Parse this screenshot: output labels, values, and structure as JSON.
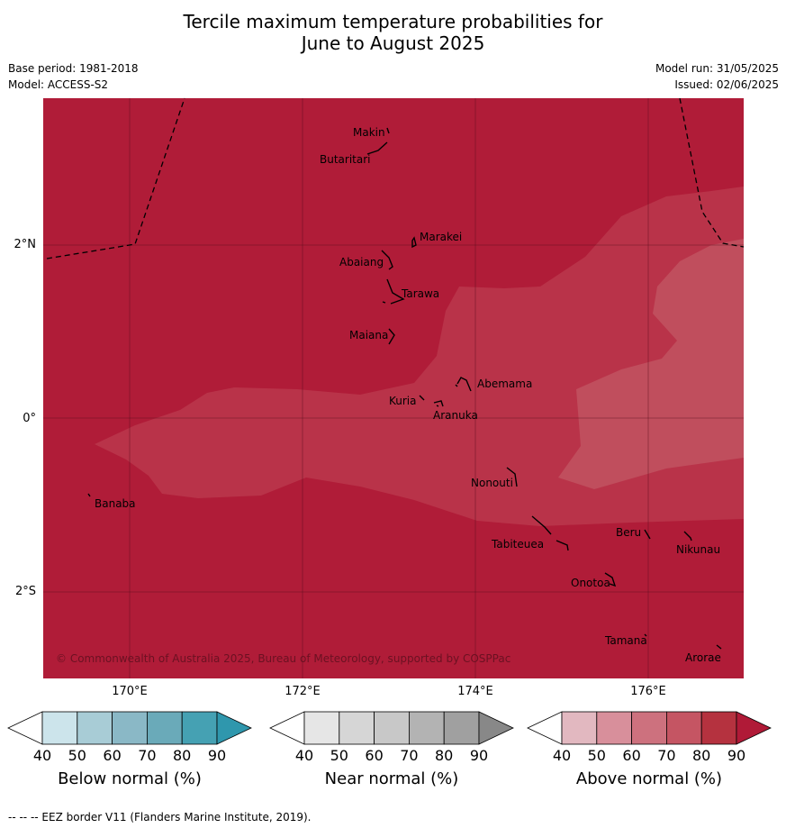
{
  "title_line1": "Tercile maximum temperature probabilities for",
  "title_line2": "June to August 2025",
  "base_period": "Base period: 1981-2018",
  "model": "Model: ACCESS-S2",
  "model_run": "Model run: 31/05/2025",
  "issued": "Issued: 02/06/2025",
  "lon_ticks": [
    "170°E",
    "172°E",
    "174°E",
    "176°E"
  ],
  "lat_ticks": [
    "2°N",
    "0°",
    "2°S"
  ],
  "islands": [
    "Makin",
    "Butaritari",
    "Marakei",
    "Abaiang",
    "Tarawa",
    "Maiana",
    "Abemama",
    "Kuria",
    "Aranuka",
    "Nonouti",
    "Banaba",
    "Beru",
    "Nikunau",
    "Tabiteuea",
    "Onotoa",
    "Tamana",
    "Arorae"
  ],
  "copyright": "© Commonwealth of Australia 2025, Bureau of Meteorology, supported by COSPPac",
  "colorbars": [
    {
      "title": "Below normal (%)",
      "ticks": [
        "40",
        "50",
        "60",
        "70",
        "80",
        "90"
      ],
      "colors": [
        "#ffffff",
        "#cce4eb",
        "#a8ccd6",
        "#8ab8c6",
        "#6aaab9",
        "#45a1b3",
        "#2f97ad"
      ]
    },
    {
      "title": "Near normal (%)",
      "ticks": [
        "40",
        "50",
        "60",
        "70",
        "80",
        "90"
      ],
      "colors": [
        "#ffffff",
        "#e6e6e6",
        "#d6d6d6",
        "#c8c8c8",
        "#b3b3b3",
        "#a0a0a0",
        "#888888"
      ]
    },
    {
      "title": "Above normal (%)",
      "ticks": [
        "40",
        "50",
        "60",
        "70",
        "80",
        "90"
      ],
      "colors": [
        "#ffffff",
        "#e2b8c0",
        "#d88f9b",
        "#cd717e",
        "#c55563",
        "#b5323f",
        "#b01a37"
      ]
    }
  ],
  "footer": "--  --  -- EEZ border V11 (Flanders Marine Institute, 2019).",
  "map_colors": {
    "high": "#b01c38",
    "mid": "#b93349",
    "low": "#c04e5d"
  }
}
